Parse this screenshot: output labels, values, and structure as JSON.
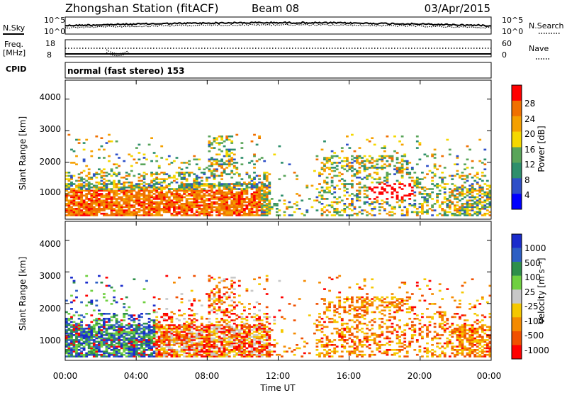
{
  "header": {
    "station": "Zhongshan Station (fitACF)",
    "beam": "Beam 08",
    "date": "03/Apr/2015"
  },
  "noise_panel": {
    "left_label": "N.Sky",
    "right_label": "N.Search",
    "ticks_left": [
      "10^5",
      "10^0"
    ],
    "ticks_right": [
      "10^5",
      "10^0"
    ]
  },
  "freq_panel": {
    "left_label_line1": "Freq.",
    "left_label_line2": "[MHz]",
    "right_label": "Nave",
    "ticks_left": [
      "18",
      "8"
    ],
    "ticks_right": [
      "60",
      "0"
    ]
  },
  "cpid": {
    "label": "CPID",
    "value": "normal (fast stereo) 153"
  },
  "colors": {
    "power_scale": [
      "#0000ff",
      "#2e4fc8",
      "#2e8f6c",
      "#5aa55a",
      "#f5d800",
      "#f5a000",
      "#f07000",
      "#ff0000"
    ],
    "velocity_scale": [
      "#1a2ccc",
      "#2d5fc4",
      "#2e8f4a",
      "#6fd040",
      "#c8c8c8",
      "#f5c800",
      "#f58a00",
      "#f05000",
      "#ff0000"
    ]
  },
  "chart_data": [
    {
      "type": "heatmap",
      "name": "power",
      "ylabel": "Slant Range [km]",
      "yticks": [
        "1000",
        "2000",
        "3000",
        "4000"
      ],
      "ylim": [
        200,
        4600
      ],
      "xlim": [
        0,
        24
      ],
      "colorbar_label": "Power [dB]",
      "colorbar_ticks": [
        "4",
        "8",
        "12",
        "16",
        "20",
        "24",
        "28"
      ],
      "colorbar_range": [
        0,
        32
      ]
    },
    {
      "type": "heatmap",
      "name": "velocity",
      "ylabel": "Slant Range [km]",
      "yticks": [
        "1000",
        "2000",
        "3000",
        "4000"
      ],
      "ylim": [
        200,
        4600
      ],
      "xlim": [
        0,
        24
      ],
      "colorbar_label": "Velocity [m s⁻¹]",
      "colorbar_ticks": [
        "1000",
        "500",
        "100",
        "25",
        "-25",
        "-100",
        "-500",
        "-1000"
      ],
      "xticks": [
        "00:00",
        "04:00",
        "08:00",
        "12:00",
        "16:00",
        "20:00",
        "00:00"
      ],
      "xlabel": "Time UT"
    }
  ]
}
